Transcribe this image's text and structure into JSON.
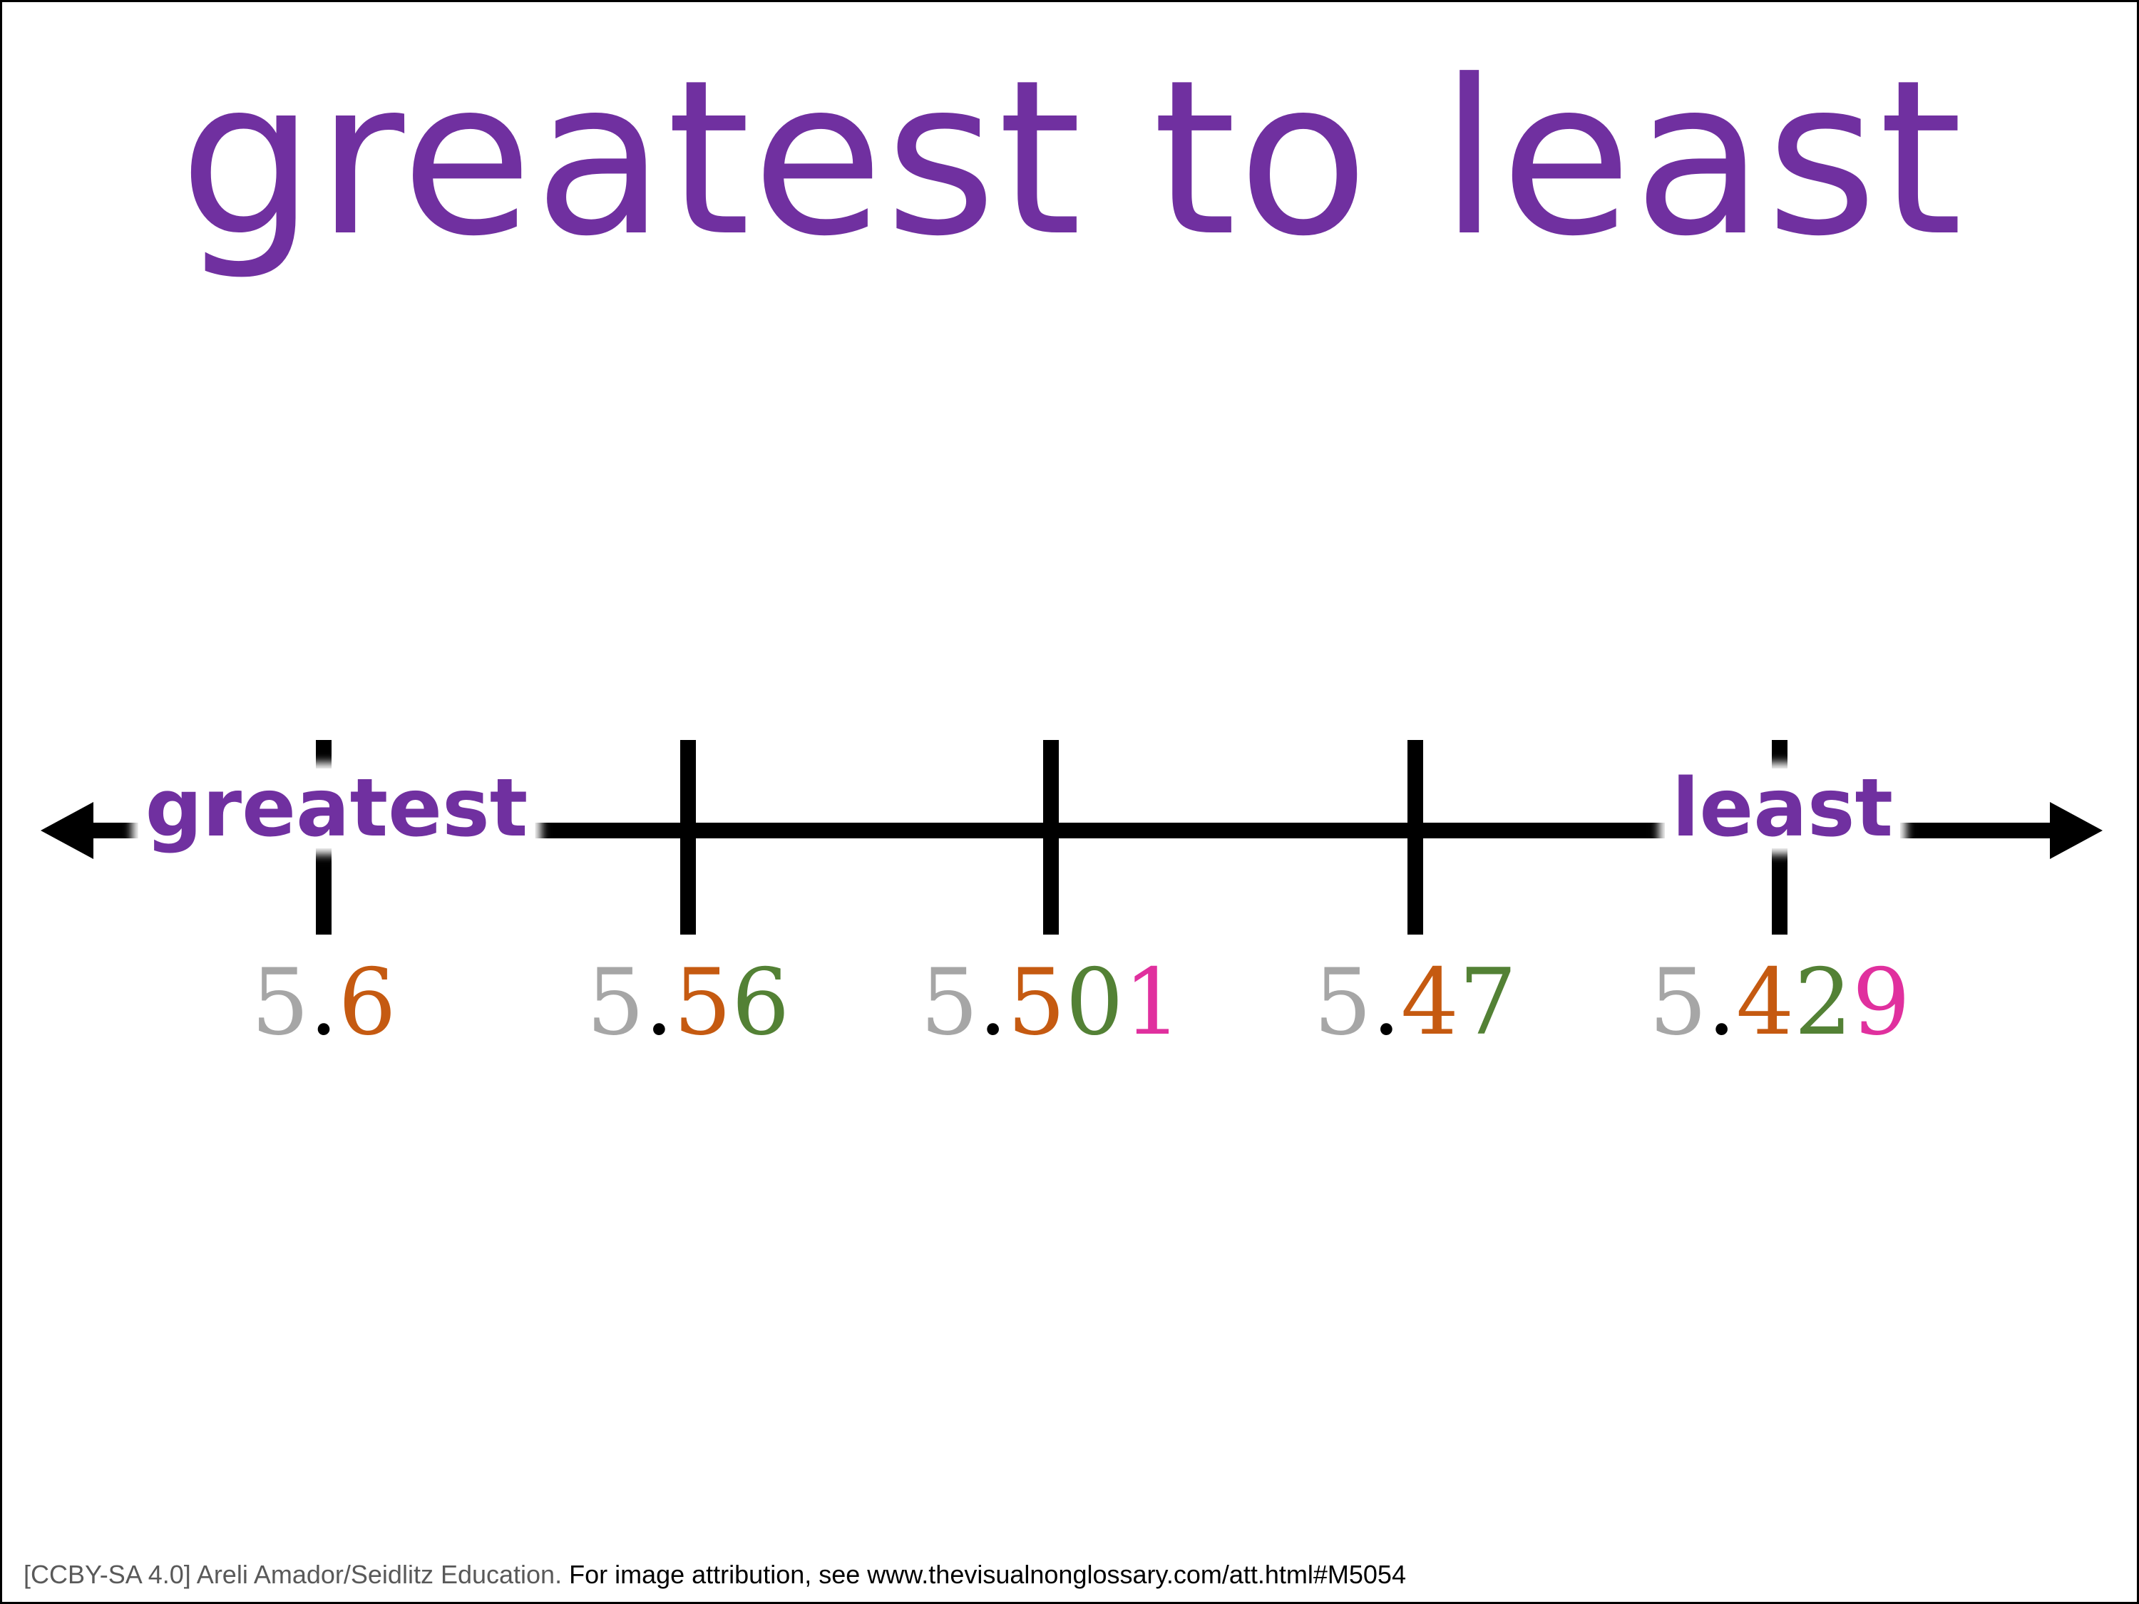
{
  "title": "greatest to least",
  "colors": {
    "title": "#7030a0",
    "ones": "#a6a6a6",
    "point": "#000000",
    "tenths": "#c55a11",
    "hundredths": "#538135",
    "thousandths": "#e0309e",
    "line": "#000000"
  },
  "number_line": {
    "left_label": "greatest",
    "right_label": "least",
    "ticks": [
      {
        "digits": [
          "5",
          ".",
          "6"
        ]
      },
      {
        "digits": [
          "5",
          ".",
          "5",
          "6"
        ]
      },
      {
        "digits": [
          "5",
          ".",
          "5",
          "0",
          "1"
        ]
      },
      {
        "digits": [
          "5",
          ".",
          "4",
          "7"
        ]
      },
      {
        "digits": [
          "5",
          ".",
          "4",
          "2",
          "9"
        ]
      }
    ]
  },
  "footer": {
    "credit": "[CCBY-SA 4.0] Areli Amador/Seidlitz Education.",
    "attribution": " For image attribution, see www.thevisualnonglossary.com/att.html#M5054"
  }
}
